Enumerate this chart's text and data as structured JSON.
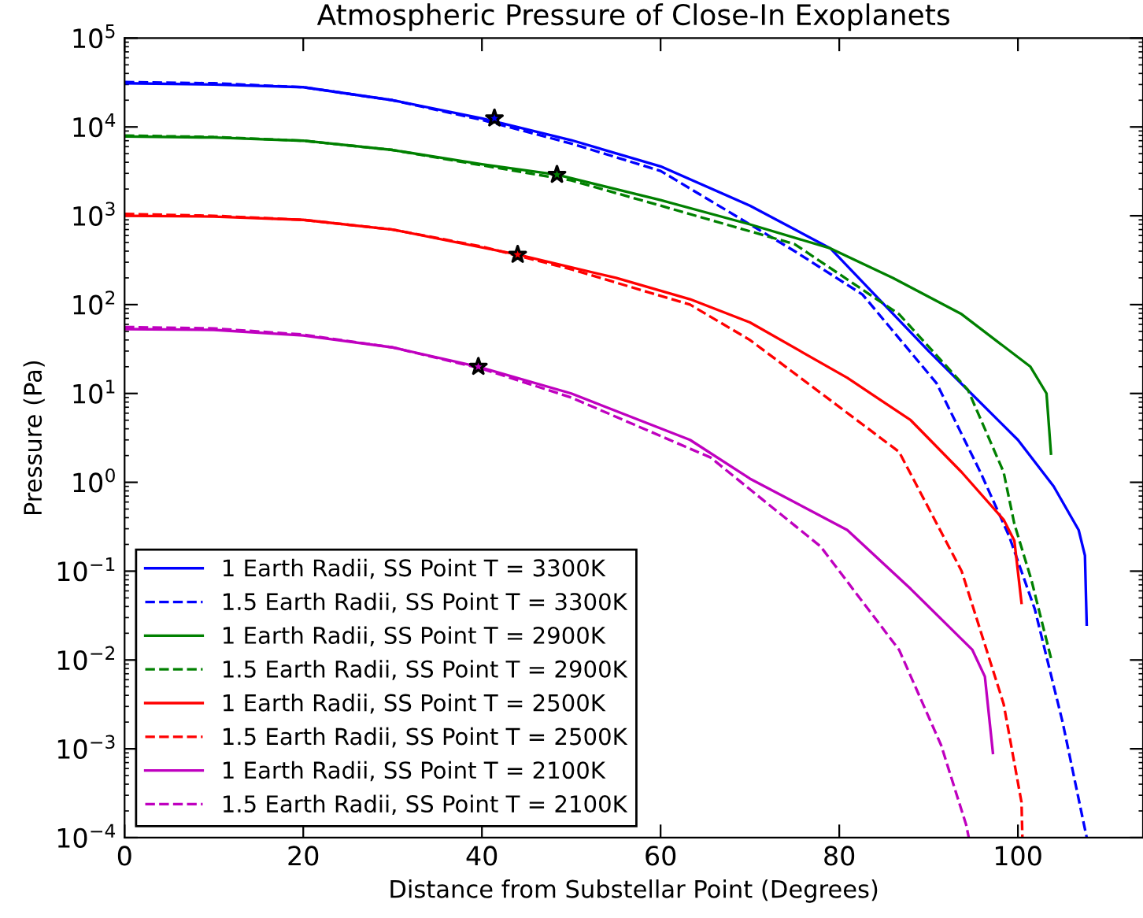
{
  "chart_data": {
    "type": "line",
    "title": "Atmospheric Pressure of Close-In Exoplanets",
    "xlabel": "Distance from Substellar Point (Degrees)",
    "ylabel": "Pressure (Pa)",
    "log": "y",
    "xlim": [
      0,
      114
    ],
    "xticks": [
      0,
      20,
      40,
      60,
      80,
      100
    ],
    "ylim": [
      0.0001,
      100000
    ],
    "yticks": [
      {
        "value": 0.0001,
        "label": "10$^{−4}$"
      },
      {
        "value": 0.001,
        "label": "10$^{−3}$"
      },
      {
        "value": 0.01,
        "label": "10$^{−2}$"
      },
      {
        "value": 0.1,
        "label": "10$^{−1}$"
      },
      {
        "value": 1,
        "label": "10$^{0}$"
      },
      {
        "value": 10,
        "label": "10$^{1}$"
      },
      {
        "value": 100,
        "label": "10$^{2}$"
      },
      {
        "value": 1000,
        "label": "10$^{3}$"
      },
      {
        "value": 10000,
        "label": "10$^{4}$"
      },
      {
        "value": 100000,
        "label": "10$^{5}$"
      }
    ],
    "grid": false,
    "legend": "bottom left",
    "series": [
      {
        "name": "1 Earth Radii, SS Point T = 3300K",
        "color": "#0000ff",
        "line_style": "solid",
        "x": [
          0,
          10,
          20,
          30,
          40,
          50,
          60,
          70,
          79,
          90,
          100,
          104,
          106.8,
          107.5,
          107.7
        ],
        "values": [
          31000,
          30000,
          28000,
          20000,
          12500,
          7100,
          3600,
          1300,
          430,
          30,
          3,
          0.9,
          0.29,
          0.15,
          0.025
        ]
      },
      {
        "name": "1.5 Earth Radii, SS Point T = 3300K",
        "color": "#0000ff",
        "line_style": "dashed",
        "x": [
          0,
          10,
          20,
          30,
          40,
          50,
          60,
          70,
          75,
          82.6,
          90.9,
          95.8,
          99,
          101.9,
          105,
          107.7
        ],
        "values": [
          32000,
          31000,
          28000,
          20000,
          12000,
          6500,
          3200,
          800,
          400,
          130,
          13,
          1.3,
          0.25,
          0.037,
          0.002,
          0.0001
        ]
      },
      {
        "name": "1 Earth Radii, SS Point T = 2900K",
        "color": "#008000",
        "line_style": "solid",
        "x": [
          0,
          10,
          20,
          30,
          40,
          48.4,
          60,
          70,
          79,
          86,
          93.7,
          101.4,
          103.2,
          103.7
        ],
        "values": [
          7800,
          7600,
          7000,
          5500,
          3800,
          2900,
          1500,
          800,
          430,
          200,
          78,
          20,
          10,
          2.1
        ]
      },
      {
        "name": "1.5 Earth Radii, SS Point T = 2900K",
        "color": "#008000",
        "line_style": "dashed",
        "x": [
          0,
          10,
          20,
          30,
          40,
          50,
          60,
          75,
          86.7,
          94.4,
          98.4,
          99.6,
          101.5,
          103.7
        ],
        "values": [
          8000,
          7700,
          7000,
          5500,
          3700,
          2500,
          1300,
          480,
          78,
          11,
          1.3,
          0.34,
          0.08,
          0.0105
        ]
      },
      {
        "name": "1 Earth Radii, SS Point T = 2500K",
        "color": "#ff0000",
        "line_style": "solid",
        "x": [
          0,
          10,
          20,
          30,
          44,
          55,
          63.3,
          70,
          80.9,
          88,
          93.7,
          98.4,
          99.6,
          100.4
        ],
        "values": [
          1000,
          980,
          900,
          700,
          365,
          200,
          115,
          63,
          15,
          5,
          1.3,
          0.38,
          0.22,
          0.044
        ]
      },
      {
        "name": "1.5 Earth Radii, SS Point T = 2500K",
        "color": "#ff0000",
        "line_style": "dashed",
        "x": [
          0,
          10,
          20,
          30,
          40,
          50,
          63.3,
          70,
          78.6,
          86.7,
          93.7,
          98.4,
          100.4,
          100.5
        ],
        "values": [
          1050,
          1000,
          900,
          700,
          450,
          250,
          100,
          40,
          9,
          2.2,
          0.1,
          0.0032,
          0.00025,
          0.0001
        ]
      },
      {
        "name": "1 Earth Radii, SS Point T = 2100K",
        "color": "#bf00bf",
        "line_style": "solid",
        "x": [
          0,
          10,
          20,
          30,
          39.6,
          50,
          63.3,
          70,
          80.9,
          88,
          94.9,
          96.3,
          97.2
        ],
        "values": [
          53,
          52,
          45,
          33,
          20,
          10,
          3,
          1.1,
          0.29,
          0.063,
          0.013,
          0.0065,
          0.0009
        ]
      },
      {
        "name": "1.5 Earth Radii, SS Point T = 2100K",
        "color": "#bf00bf",
        "line_style": "dashed",
        "x": [
          0,
          10,
          20,
          30,
          40,
          50,
          65.6,
          77.9,
          86.7,
          91.4,
          94.2,
          94.5
        ],
        "values": [
          56,
          54,
          46,
          33,
          19,
          9,
          1.9,
          0.19,
          0.013,
          0.0011,
          0.00014,
          0.0001
        ]
      },
      {
        "type": "scatter",
        "marker": "star",
        "x": [
          41.4,
          48.4,
          44,
          39.6
        ],
        "values": [
          12500,
          2900,
          365,
          20
        ],
        "colors": [
          "#0000ff",
          "#008000",
          "#ff0000",
          "#bf00bf"
        ]
      }
    ]
  }
}
